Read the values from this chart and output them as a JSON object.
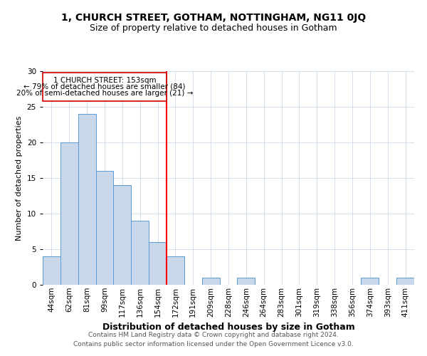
{
  "title1": "1, CHURCH STREET, GOTHAM, NOTTINGHAM, NG11 0JQ",
  "title2": "Size of property relative to detached houses in Gotham",
  "xlabel": "Distribution of detached houses by size in Gotham",
  "ylabel": "Number of detached properties",
  "categories": [
    "44sqm",
    "62sqm",
    "81sqm",
    "99sqm",
    "117sqm",
    "136sqm",
    "154sqm",
    "172sqm",
    "191sqm",
    "209sqm",
    "228sqm",
    "246sqm",
    "264sqm",
    "283sqm",
    "301sqm",
    "319sqm",
    "338sqm",
    "356sqm",
    "374sqm",
    "393sqm",
    "411sqm"
  ],
  "values": [
    4,
    20,
    24,
    16,
    14,
    9,
    6,
    4,
    0,
    1,
    0,
    1,
    0,
    0,
    0,
    0,
    0,
    0,
    1,
    0,
    1
  ],
  "bar_color": "#c8d8ea",
  "bar_edge_color": "#5b9bd5",
  "red_line_index": 6,
  "ylim": [
    0,
    30
  ],
  "yticks": [
    0,
    5,
    10,
    15,
    20,
    25,
    30
  ],
  "annotation_line1": "1 CHURCH STREET: 153sqm",
  "annotation_line2": "← 79% of detached houses are smaller (84)",
  "annotation_line3": "20% of semi-detached houses are larger (21) →",
  "annotation_box_color": "#ffffff",
  "annotation_box_edge_color": "#cc0000",
  "footer1": "Contains HM Land Registry data © Crown copyright and database right 2024.",
  "footer2": "Contains public sector information licensed under the Open Government Licence v3.0.",
  "title1_fontsize": 10,
  "title2_fontsize": 9,
  "xlabel_fontsize": 9,
  "ylabel_fontsize": 8,
  "tick_fontsize": 7.5,
  "annotation_fontsize": 7.5,
  "footer_fontsize": 6.5,
  "grid_color": "#cddaeb"
}
